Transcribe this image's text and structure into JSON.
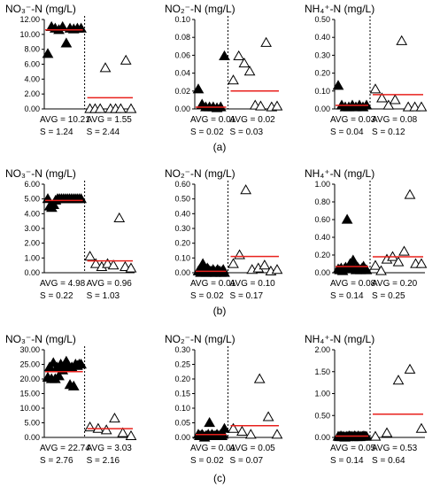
{
  "chart_data": [
    {
      "type": "scatter",
      "row": "a",
      "title": "NO₃⁻-N (mg/L)",
      "ylim": [
        0,
        12
      ],
      "yticks": [
        "0.00",
        "2.00",
        "4.00",
        "6.00",
        "8.00",
        "10.00",
        "12.00"
      ],
      "series": [
        {
          "values": [
            7.4,
            11.0,
            10.8,
            10.6,
            11.0,
            8.8,
            10.8,
            10.7,
            10.8,
            10.8
          ]
        },
        {
          "values": [
            0.0,
            0.0,
            0.0,
            5.5,
            0.0,
            0.0,
            0.0,
            6.5,
            0.0
          ]
        }
      ],
      "avg_lines": [
        10.6,
        1.5
      ],
      "stats": [
        {
          "avg": "AVG = 10.21",
          "s": "S = 1.24"
        },
        {
          "avg": "AVG = 1.55",
          "s": "S = 2.44"
        }
      ]
    },
    {
      "type": "scatter",
      "row": "a",
      "title": "NO₂⁻-N (mg/L)",
      "ylim": [
        0,
        0.1
      ],
      "yticks": [
        "0.00",
        "0.02",
        "0.04",
        "0.06",
        "0.08",
        "0.10"
      ],
      "series": [
        {
          "values": [
            0.022,
            0.005,
            0.002,
            0.002,
            0.002,
            0.001,
            0.002,
            0.059
          ]
        },
        {
          "values": [
            0.032,
            0.059,
            0.051,
            0.042,
            0.004,
            0.003,
            0.074,
            0.002,
            0.003
          ]
        }
      ],
      "avg_lines": [
        0.002,
        0.02
      ],
      "stats": [
        {
          "avg": "AVG = 0.01",
          "s": "S = 0.02"
        },
        {
          "avg": "AVG = 0.02",
          "s": "S = 0.03"
        }
      ]
    },
    {
      "type": "scatter",
      "row": "a",
      "title": "NH₄⁺-N (mg/L)",
      "ylim": [
        0,
        0.5
      ],
      "yticks": [
        "0.00",
        "0.10",
        "0.20",
        "0.30",
        "0.40",
        "0.50"
      ],
      "series": [
        {
          "values": [
            0.13,
            0.02,
            0.01,
            0.01,
            0.02,
            0.01,
            0.02,
            0.01,
            0.02
          ]
        },
        {
          "values": [
            0.11,
            0.06,
            0.02,
            0.05,
            0.38,
            0.01,
            0.01,
            0.01
          ]
        }
      ],
      "avg_lines": [
        0.02,
        0.08
      ],
      "stats": [
        {
          "avg": "AVG = 0.03",
          "s": "S = 0.04"
        },
        {
          "avg": "AVG = 0.08",
          "s": "S = 0.12"
        }
      ]
    },
    {
      "type": "scatter",
      "row": "b",
      "title": "NO₃⁻-N (mg/L)",
      "ylim": [
        0,
        6
      ],
      "yticks": [
        "0.00",
        "1.00",
        "2.00",
        "3.00",
        "4.00",
        "5.00",
        "6.00"
      ],
      "series": [
        {
          "values": [
            5.0,
            4.5,
            4.4,
            4.6,
            4.9,
            5.0,
            5.0,
            5.0,
            5.0,
            5.0,
            5.0,
            5.0,
            5.0,
            5.0,
            5.0,
            5.0,
            5.0,
            5.0
          ]
        },
        {
          "values": [
            1.1,
            0.6,
            0.4,
            0.6,
            0.5,
            3.7,
            0.4,
            0.3
          ]
        }
      ],
      "avg_lines": [
        4.9,
        0.8
      ],
      "stats": [
        {
          "avg": "AVG = 4.98",
          "s": "S = 0.22"
        },
        {
          "avg": "AVG = 0.96",
          "s": "S = 1.03"
        }
      ]
    },
    {
      "type": "scatter",
      "row": "b",
      "title": "NO₂⁻-N (mg/L)",
      "ylim": [
        0,
        0.6
      ],
      "yticks": [
        "0.00",
        "0.10",
        "0.20",
        "0.30",
        "0.40",
        "0.50",
        "0.60"
      ],
      "series": [
        {
          "values": [
            0.01,
            0.02,
            0.0,
            0.04,
            0.06,
            0.01,
            0.02,
            0.0,
            0.03,
            0.02,
            0.01,
            0.01,
            0.0,
            0.02,
            0.01,
            0.0,
            0.01,
            0.02,
            0.01,
            0.01,
            0.0,
            0.01,
            0.02,
            0.0
          ]
        },
        {
          "values": [
            0.06,
            0.12,
            0.56,
            0.02,
            0.03,
            0.05,
            0.01,
            0.02
          ]
        }
      ],
      "avg_lines": [
        0.01,
        0.11
      ],
      "stats": [
        {
          "avg": "AVG = 0.01",
          "s": "S = 0.02"
        },
        {
          "avg": "AVG = 0.10",
          "s": "S = 0.17"
        }
      ]
    },
    {
      "type": "scatter",
      "row": "b",
      "title": "NH₄⁺-N (mg/L)",
      "ylim": [
        0,
        1.0
      ],
      "yticks": [
        "0.00",
        "0.20",
        "0.40",
        "0.60",
        "0.80",
        "1.00"
      ],
      "series": [
        {
          "values": [
            0.04,
            0.03,
            0.05,
            0.02,
            0.04,
            0.06,
            0.6,
            0.05,
            0.1,
            0.08,
            0.14,
            0.05,
            0.03,
            0.06,
            0.04,
            0.03,
            0.05,
            0.07,
            0.04,
            0.03
          ]
        },
        {
          "values": [
            0.08,
            0.02,
            0.15,
            0.18,
            0.12,
            0.24,
            0.88,
            0.1,
            0.1
          ]
        }
      ],
      "avg_lines": [
        0.07,
        0.18
      ],
      "stats": [
        {
          "avg": "AVG = 0.08",
          "s": "S = 0.14"
        },
        {
          "avg": "AVG = 0.20",
          "s": "S = 0.25"
        }
      ]
    },
    {
      "type": "scatter",
      "row": "c",
      "title": "NO₃⁻-N (mg/L)",
      "ylim": [
        0,
        30
      ],
      "yticks": [
        "0.00",
        "5.00",
        "10.00",
        "15.00",
        "20.00",
        "25.00",
        "30.00"
      ],
      "series": [
        {
          "values": [
            20.5,
            24.0,
            20.0,
            25.5,
            20.0,
            24.0,
            21.0,
            25.0,
            23.0,
            24.0,
            26.0,
            24.0,
            18.0,
            24.0,
            17.5,
            25.0,
            24.5,
            25.0,
            25.0
          ]
        },
        {
          "values": [
            3.5,
            3.0,
            2.5,
            6.5,
            1.5,
            0.5
          ]
        }
      ],
      "avg_lines": [
        22.5,
        3.0
      ],
      "stats": [
        {
          "avg": "AVG = 22.74",
          "s": "S = 2.76"
        },
        {
          "avg": "AVG = 3.03",
          "s": "S = 2.16"
        }
      ]
    },
    {
      "type": "scatter",
      "row": "c",
      "title": "NO₂⁻-N (mg/L)",
      "ylim": [
        0,
        0.3
      ],
      "yticks": [
        "0.00",
        "0.05",
        "0.10",
        "0.15",
        "0.20",
        "0.25",
        "0.30"
      ],
      "series": [
        {
          "values": [
            0.01,
            0.005,
            0.005,
            0.01,
            0.005,
            0.0,
            0.005,
            0.005,
            0.01,
            0.05,
            0.005,
            0.01,
            0.005,
            0.005,
            0.005,
            0.01,
            0.005,
            0.005,
            0.01,
            0.005,
            0.01,
            0.03
          ]
        },
        {
          "values": [
            0.03,
            0.02,
            0.01,
            0.2,
            0.07,
            0.01
          ]
        }
      ],
      "avg_lines": [
        0.01,
        0.04
      ],
      "stats": [
        {
          "avg": "AVG = 0.01",
          "s": "S = 0.02"
        },
        {
          "avg": "AVG = 0.05",
          "s": "S = 0.07"
        }
      ]
    },
    {
      "type": "scatter",
      "row": "c",
      "title": "NH₄⁺-N (mg/L)",
      "ylim": [
        0,
        2.0
      ],
      "yticks": [
        "0.00",
        "0.50",
        "1.00",
        "1.50",
        "2.00"
      ],
      "series": [
        {
          "values": [
            0.02,
            0.01,
            0.03,
            0.01,
            0.02,
            0.0,
            0.02,
            0.01,
            0.03,
            0.02,
            0.02,
            0.01,
            0.03,
            0.02,
            0.01,
            0.03,
            0.01,
            0.02,
            0.02,
            0.03,
            0.02,
            0.02
          ]
        },
        {
          "values": [
            0.02,
            0.1,
            1.3,
            1.55,
            0.2
          ]
        }
      ],
      "avg_lines": [
        0.03,
        0.53
      ],
      "stats": [
        {
          "avg": "AVG = 0.05",
          "s": "S = 0.14"
        },
        {
          "avg": "AVG = 0.53",
          "s": "S = 0.64"
        }
      ]
    }
  ],
  "captions": [
    "(a)",
    "(b)",
    "(c)"
  ],
  "colors": {
    "avg_line": "#e8201c",
    "marker": "#000000",
    "axis": "#000000"
  }
}
